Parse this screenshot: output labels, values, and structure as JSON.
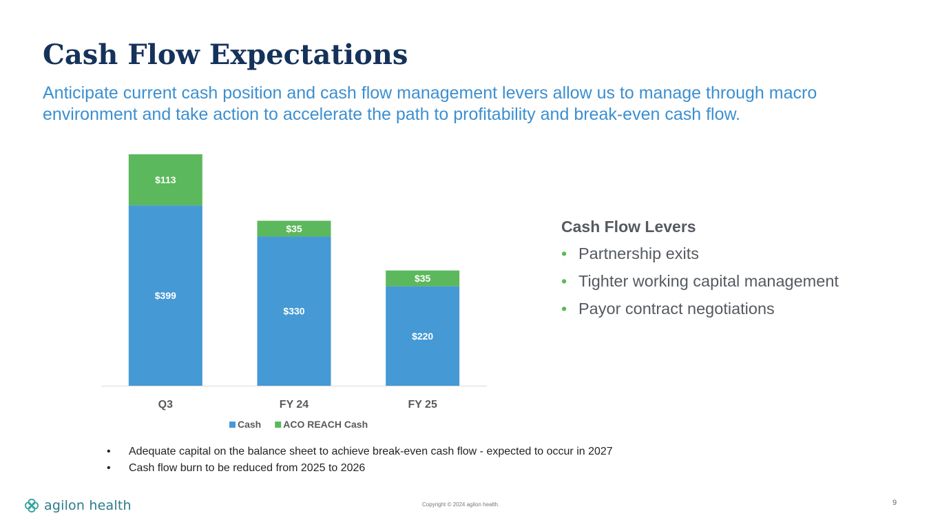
{
  "title": "Cash Flow Expectations",
  "subtitle": "Anticipate current cash position and cash flow management levers allow us to manage through macro environment and take action to accelerate the path to profitability and break-even cash flow.",
  "chart_data": {
    "type": "bar",
    "stacked": true,
    "categories": [
      "Q3",
      "FY 24",
      "FY 25"
    ],
    "series": [
      {
        "name": "Cash",
        "values": [
          399,
          330,
          220
        ],
        "labels": [
          "$399",
          "$330",
          "$220"
        ],
        "color": "#4599d4"
      },
      {
        "name": "ACO REACH Cash",
        "values": [
          113,
          35,
          35
        ],
        "labels": [
          "$113",
          "$35",
          "$35"
        ],
        "color": "#5cb85c"
      }
    ],
    "ylim": [
      0,
      512
    ],
    "legend": "bottom",
    "grid": false
  },
  "levers": {
    "title": "Cash Flow Levers",
    "items": [
      "Partnership exits",
      "Tighter working capital management",
      "Payor contract negotiations"
    ]
  },
  "notes": [
    "Adequate capital on the balance sheet to achieve break-even cash flow - expected to occur in 2027",
    "Cash flow burn to be reduced from 2025 to 2026"
  ],
  "footer": {
    "logo_text": "agilon health",
    "copyright": "Copyright © 2024 agilon health.",
    "page": "9"
  }
}
